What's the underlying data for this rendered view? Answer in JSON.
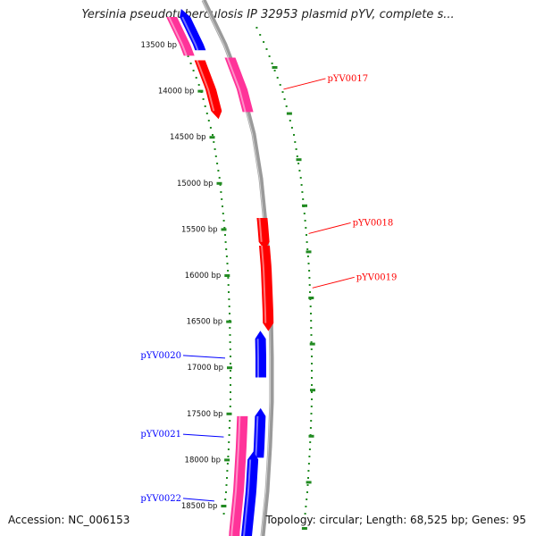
{
  "title": "Yersinia pseudotuberculosis IP 32953 plasmid pYV, complete s...",
  "footer": {
    "accession": "Accession: NC_006153",
    "summary": "Topology: circular; Length: 68,525 bp; Genes: 95"
  },
  "colors": {
    "forward_gene": "#ff0000",
    "reverse_gene": "#0000ff",
    "pink_feature": "#ff3399",
    "backbone": "#888888",
    "ticks": "#228b22"
  },
  "tick_labels": [
    {
      "bp": 13500,
      "label": "13500 bp"
    },
    {
      "bp": 14000,
      "label": "14000 bp"
    },
    {
      "bp": 14500,
      "label": "14500 bp"
    },
    {
      "bp": 15000,
      "label": "15000 bp"
    },
    {
      "bp": 15500,
      "label": "15500 bp"
    },
    {
      "bp": 16000,
      "label": "16000 bp"
    },
    {
      "bp": 16500,
      "label": "16500 bp"
    },
    {
      "bp": 17000,
      "label": "17000 bp"
    },
    {
      "bp": 17500,
      "label": "17500 bp"
    },
    {
      "bp": 18000,
      "label": "18000 bp"
    },
    {
      "bp": 18500,
      "label": "18500 bp"
    }
  ],
  "features": [
    {
      "type": "pink",
      "track": "outer-left",
      "start": 13200,
      "end": 13620
    },
    {
      "type": "reverse",
      "track": "outer-left-2",
      "start": 13200,
      "end": 13560
    },
    {
      "type": "pink",
      "track": "inner-right",
      "start": 13640,
      "end": 14230
    },
    {
      "type": "forward",
      "track": "inner-left",
      "start": 13670,
      "end": 14220,
      "name": "pYV0017"
    },
    {
      "type": "forward",
      "track": "inner-right",
      "start": 15380,
      "end": 15640,
      "name": "pYV0018"
    },
    {
      "type": "forward",
      "track": "inner-right",
      "start": 15680,
      "end": 16520,
      "name": "pYV0019"
    },
    {
      "type": "reverse",
      "track": "inner-right",
      "start": 16690,
      "end": 17110,
      "name": "pYV0020"
    },
    {
      "type": "reverse",
      "track": "inner-right",
      "start": 17530,
      "end": 17980,
      "name": "pYV0021"
    },
    {
      "type": "pink",
      "track": "outer-left",
      "start": 17530,
      "end": 18900
    },
    {
      "type": "reverse",
      "track": "outer-left-2",
      "start": 18000,
      "end": 18900,
      "name": "pYV0022"
    }
  ]
}
